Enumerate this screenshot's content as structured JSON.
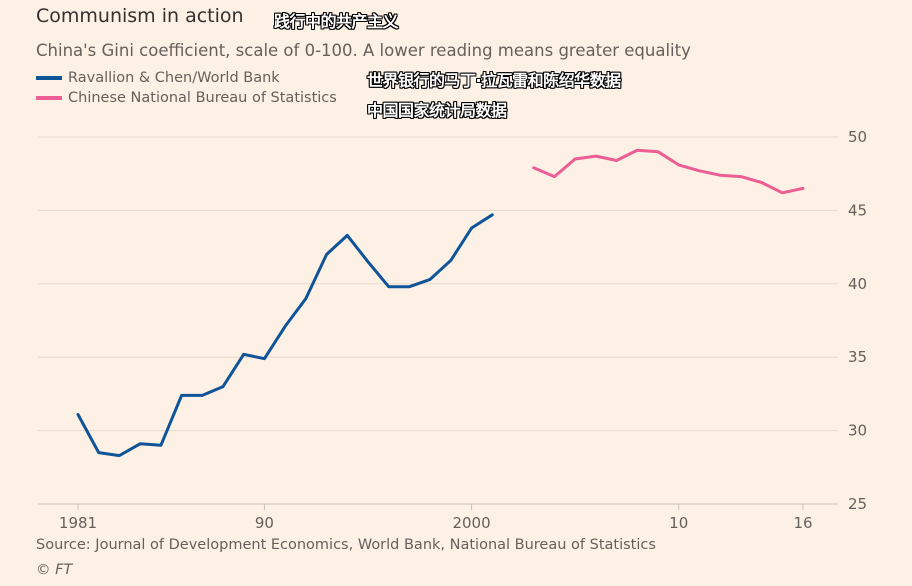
{
  "title": "Communism in action",
  "title_cn": "践行中的共产主义",
  "subtitle": "China's Gini coefficient, scale of 0-100. A lower reading means greater equality",
  "legend_cn_line1": "世界银行的马丁·拉瓦雷和陈绍华数据",
  "legend_cn_line2": "中国国家统计局数据",
  "source": "Source: Journal of Development Economics, World Bank, National Bureau of Statistics",
  "credit": "© FT",
  "colors": {
    "background": "#fdf1e5",
    "series1": "#0f5499",
    "series2": "#ec5e94",
    "grid": "#e6d9ce",
    "tick_text": "#66605c"
  },
  "chart_data": {
    "type": "line",
    "title": "Communism in action",
    "subtitle": "China's Gini coefficient, scale of 0-100. A lower reading means greater equality",
    "xlabel": "",
    "ylabel": "",
    "xlim": [
      1980,
      2017
    ],
    "ylim": [
      25,
      50
    ],
    "x_ticks": [
      1981,
      1990,
      2000,
      2010,
      2016
    ],
    "x_tick_labels": [
      "1981",
      "90",
      "2000",
      "10",
      "16"
    ],
    "y_ticks": [
      25,
      30,
      35,
      40,
      45,
      50
    ],
    "y_tick_labels": [
      "25",
      "30",
      "35",
      "40",
      "45",
      "50"
    ],
    "y_axis_side": "right",
    "grid": true,
    "legend_position": "top-left",
    "series": [
      {
        "name": "Ravallion & Chen/World Bank",
        "color": "#0f5499",
        "x": [
          1981,
          1982,
          1983,
          1984,
          1985,
          1986,
          1987,
          1988,
          1989,
          1990,
          1991,
          1992,
          1993,
          1994,
          1995,
          1996,
          1997,
          1998,
          1999,
          2000,
          2001
        ],
        "values": [
          31.1,
          28.5,
          28.3,
          29.1,
          29.0,
          32.4,
          32.4,
          33.0,
          35.2,
          34.9,
          37.1,
          39.0,
          42.0,
          43.3,
          41.5,
          39.8,
          39.8,
          40.3,
          41.6,
          43.8,
          44.7
        ]
      },
      {
        "name": "Chinese National Bureau of Statistics",
        "color": "#ec5e94",
        "x": [
          2003,
          2004,
          2005,
          2006,
          2007,
          2008,
          2009,
          2010,
          2011,
          2012,
          2013,
          2014,
          2015,
          2016
        ],
        "values": [
          47.9,
          47.3,
          48.5,
          48.7,
          48.4,
          49.1,
          49.0,
          48.1,
          47.7,
          47.4,
          47.3,
          46.9,
          46.2,
          46.5
        ]
      }
    ]
  }
}
